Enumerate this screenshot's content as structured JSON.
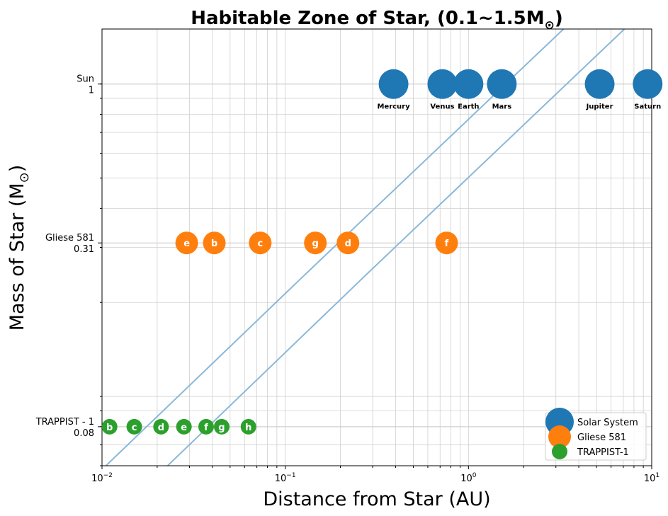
{
  "chart_data": {
    "type": "scatter",
    "title_main": "Habitable Zone of Star, (0.1~1.5M",
    "title_unit_symbol": "⊙",
    "title_end": ")",
    "xlabel": "Distance from Star (AU)",
    "ylabel_main": "Mass of Star (M",
    "ylabel_unit_symbol": "⊙",
    "ylabel_end": ")",
    "x_scale": "log",
    "y_scale": "log",
    "xlim": [
      0.01,
      10
    ],
    "ylim": [
      0.06,
      1.5
    ],
    "grid": true,
    "x_ticks": [
      {
        "value": 0.01,
        "base": "10",
        "exp": "−2"
      },
      {
        "value": 0.1,
        "base": "10",
        "exp": "−1"
      },
      {
        "value": 1,
        "base": "10",
        "exp": "0"
      },
      {
        "value": 10,
        "base": "10",
        "exp": "1"
      }
    ],
    "y_ticks": [
      {
        "value": 1,
        "name": "Sun",
        "mass": "1"
      },
      {
        "value": 0.31,
        "name": "Gliese 581",
        "mass": "0.31"
      },
      {
        "value": 0.08,
        "name": "TRAPPIST - 1",
        "mass": "0.08"
      }
    ],
    "habitable_zone": {
      "color": "#8ab8d8",
      "inner": [
        [
          0.0105,
          0.06
        ],
        [
          0.125,
          0.242
        ],
        [
          3.3,
          1.5
        ]
      ],
      "outer": [
        [
          0.0228,
          0.06
        ],
        [
          0.27,
          0.242
        ],
        [
          7.1,
          1.5
        ]
      ]
    },
    "legend_position": "lower-right",
    "series": [
      {
        "name": "Solar System",
        "color": "#1f77b4",
        "mass": 1,
        "label_position": "below",
        "points": [
          {
            "label": "Mercury",
            "distance": 0.39
          },
          {
            "label": "Venus",
            "distance": 0.72
          },
          {
            "label": "Earth",
            "distance": 1.0
          },
          {
            "label": "Mars",
            "distance": 1.52
          },
          {
            "label": "Jupiter",
            "distance": 5.2
          },
          {
            "label": "Saturn",
            "distance": 9.5
          }
        ]
      },
      {
        "name": "Gliese 581",
        "color": "#ff7f0e",
        "mass": 0.31,
        "label_position": "center",
        "points": [
          {
            "label": "e",
            "distance": 0.029
          },
          {
            "label": "b",
            "distance": 0.041
          },
          {
            "label": "c",
            "distance": 0.073
          },
          {
            "label": "g",
            "distance": 0.146
          },
          {
            "label": "d",
            "distance": 0.22
          },
          {
            "label": "f",
            "distance": 0.76
          }
        ]
      },
      {
        "name": "TRAPPIST-1",
        "color": "#2ca02c",
        "mass": 0.08,
        "label_position": "center",
        "points": [
          {
            "label": "b",
            "distance": 0.011
          },
          {
            "label": "c",
            "distance": 0.015
          },
          {
            "label": "d",
            "distance": 0.021
          },
          {
            "label": "e",
            "distance": 0.028
          },
          {
            "label": "f",
            "distance": 0.037
          },
          {
            "label": "g",
            "distance": 0.045
          },
          {
            "label": "h",
            "distance": 0.063
          }
        ]
      }
    ]
  }
}
